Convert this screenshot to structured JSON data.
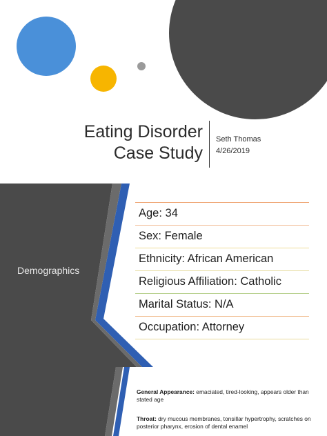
{
  "slide1": {
    "title_line1": "Eating Disorder",
    "title_line2": "Case Study",
    "author": "Seth Thomas",
    "date": "4/26/2019",
    "colors": {
      "blue": "#4a90d9",
      "yellow": "#f7b500",
      "grey": "#999999",
      "dark": "#4a4a4a"
    }
  },
  "slide2": {
    "section": "Demographics",
    "items": [
      "Age: 34",
      "Sex: Female",
      "Ethnicity: African American",
      "Religious Affiliation: Catholic",
      "Marital Status: N/A",
      "Occupation: Attorney"
    ],
    "colors": {
      "panel": "#4a4a4a",
      "accent_blue": "#2f5fb3",
      "rule_top": "#f0a878",
      "rule_mid": "#e8d890",
      "rule_green": "#b6cf8b"
    }
  },
  "slide3": {
    "notes": [
      {
        "label": "General Appearance",
        "sep": ":",
        "text": " emaciated, tired-looking, appears older than stated age"
      },
      {
        "label": "Throat",
        "sep": ":",
        "text": " dry mucous membranes, tonsillar hypertrophy, scratches on posterior pharynx, erosion of dental enamel"
      }
    ]
  }
}
